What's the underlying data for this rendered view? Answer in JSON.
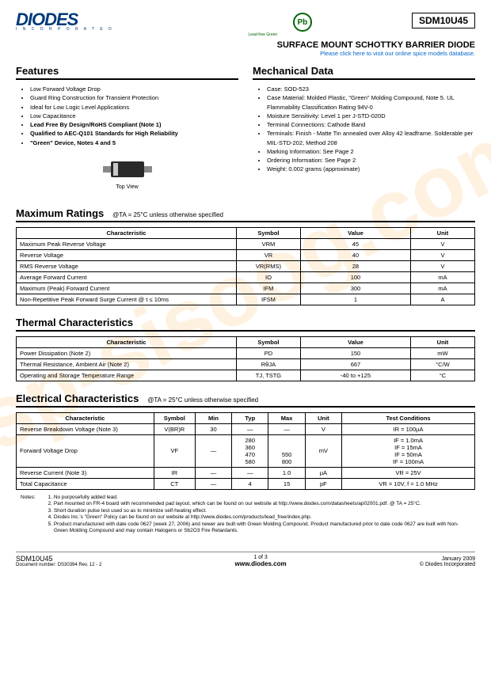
{
  "logo": {
    "main": "DIODES",
    "sub": "I N C O R P O R A T E D"
  },
  "pb": {
    "symbol": "Pb",
    "label": "Lead-free Green"
  },
  "part_number": "SDM10U45",
  "subtitle": "SURFACE MOUNT SCHOTTKY BARRIER DIODE",
  "dblink": "Please click here to visit our online spice models database.",
  "features": {
    "title": "Features",
    "items": [
      {
        "text": "Low Forward Voltage Drop",
        "bold": false
      },
      {
        "text": "Guard Ring Construction for Transient Protection",
        "bold": false
      },
      {
        "text": "Ideal for Low Logic Level Applications",
        "bold": false
      },
      {
        "text": "Low Capacitance",
        "bold": false
      },
      {
        "text": "Lead Free By Design/RoHS Compliant (Note 1)",
        "bold": true
      },
      {
        "text": "Qualified to AEC-Q101 Standards for High Reliability",
        "bold": true
      },
      {
        "text": "\"Green\" Device, Notes 4 and 5",
        "bold": true
      }
    ]
  },
  "mechanical": {
    "title": "Mechanical Data",
    "items": [
      "Case: SOD-523",
      "Case Material: Molded Plastic, \"Green\" Molding Compound, Note 5.  UL Flammability Classification Rating 94V-0",
      "Moisture Sensitivity: Level 1 per J-STD-020D",
      "Terminal Connections: Cathode Band",
      "Terminals: Finish - Matte Tin annealed over Alloy 42 leadframe.  Solderable per MIL-STD-202, Method 208",
      "Marking Information: See Page 2",
      "Ordering Information: See Page 2",
      "Weight: 0.002 grams (approximate)"
    ]
  },
  "top_view_label": "Top View",
  "max_ratings": {
    "title": "Maximum Ratings",
    "condition": "@TA = 25°C unless otherwise specified",
    "headers": [
      "Characteristic",
      "Symbol",
      "Value",
      "Unit"
    ],
    "rows": [
      [
        "Maximum Peak Reverse Voltage",
        "VRM",
        "45",
        "V"
      ],
      [
        "Reverse Voltage",
        "VR",
        "40",
        "V"
      ],
      [
        "RMS Reverse Voltage",
        "VR(RMS)",
        "28",
        "V"
      ],
      [
        "Average Forward Current",
        "IO",
        "100",
        "mA"
      ],
      [
        "Maximum (Peak) Forward Current",
        "IFM",
        "300",
        "mA"
      ],
      [
        "Non-Repetitive Peak Forward Surge Current        @ t ≤ 10ms",
        "IFSM",
        "1",
        "A"
      ]
    ]
  },
  "thermal": {
    "title": "Thermal Characteristics",
    "headers": [
      "Characteristic",
      "Symbol",
      "Value",
      "Unit"
    ],
    "rows": [
      [
        "Power Dissipation (Note 2)",
        "PD",
        "150",
        "mW"
      ],
      [
        "Thermal Resistance, Ambient Air (Note 2)",
        "RθJA",
        "667",
        "°C/W"
      ],
      [
        "Operating and Storage Temperature Range",
        "TJ, TSTG",
        "-40 to +125",
        "°C"
      ]
    ]
  },
  "electrical": {
    "title": "Electrical Characteristics",
    "condition": "@TA = 25°C unless otherwise specified",
    "headers": [
      "Characteristic",
      "Symbol",
      "Min",
      "Typ",
      "Max",
      "Unit",
      "Test Conditions"
    ],
    "rows": [
      [
        "Reverse Breakdown Voltage (Note 3)",
        "V(BR)R",
        "30",
        "—",
        "—",
        "V",
        "IR = 100µA"
      ],
      [
        "Forward Voltage Drop",
        "VF",
        "—",
        "280\n360\n470\n580",
        "\n\n550\n800",
        "mV",
        "IF = 1.0mA\nIF = 15mA\nIF = 50mA\nIF = 100mA"
      ],
      [
        "Reverse Current (Note 3)",
        "IR",
        "—",
        "—",
        "1.0",
        "µA",
        "VR = 25V"
      ],
      [
        "Total Capacitance",
        "CT",
        "—",
        "4",
        "15",
        "pF",
        "VR = 10V, f = 1.0 MHz"
      ]
    ]
  },
  "notes": {
    "label": "Notes:",
    "items": [
      "No purposefully added lead.",
      "Part mounted on FR-4 board with recommended pad layout, which can be found on our website at http://www.diodes.com/datasheets/ap02001.pdf.  @ TA = 25°C.",
      "Short duration pulse test used so as to minimize self-heating effect.",
      "Diodes Inc.'s \"Green\" Policy can be found on our website at http://www.diodes.com/products/lead_free/index.php.",
      "Product manufactured with date code 0627 (week 27, 2006) and newer are built with Green Molding Compound. Product manufactured prior to date code 0627 are built with Non-Green Molding Compound and may contain Halogens or Sb2O3 Fire Retardants."
    ]
  },
  "footer": {
    "part": "SDM10U45",
    "doc": "Document number: DS30394 Rev. 12 - 2",
    "page": "1 of 3",
    "url": "www.diodes.com",
    "date": "January 2009",
    "copyright": "© Diodes Incorporated"
  },
  "watermark": "isp-sisoog.com",
  "colors": {
    "brand": "#003a7a",
    "green": "#006600",
    "link": "#0066cc",
    "wm": "rgba(255,140,0,0.12)"
  }
}
